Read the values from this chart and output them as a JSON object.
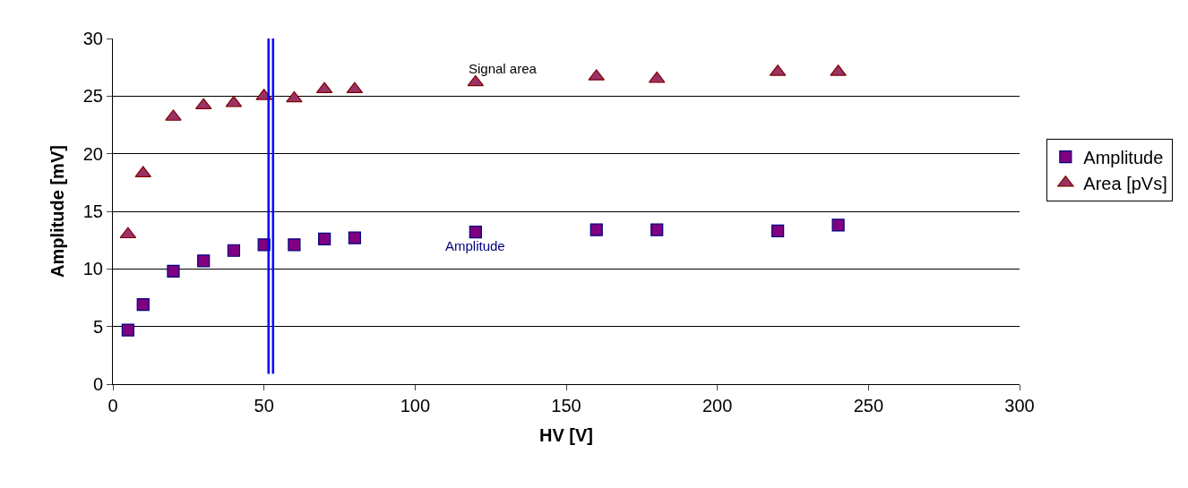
{
  "chart_data": {
    "type": "scatter",
    "xlabel": "HV [V]",
    "ylabel": "Amplitude [mV]",
    "x": [
      5,
      10,
      20,
      30,
      40,
      50,
      60,
      70,
      80,
      120,
      160,
      180,
      220,
      240
    ],
    "series": [
      {
        "name": "Amplitude",
        "color": "#800080",
        "marker": "square",
        "values": [
          4.7,
          6.9,
          9.8,
          10.7,
          11.6,
          12.1,
          12.1,
          12.6,
          12.7,
          13.2,
          13.4,
          13.4,
          13.3,
          13.8
        ]
      },
      {
        "name": "Area [pVs]",
        "color": "#993366",
        "marker": "triangle",
        "values": [
          13.0,
          18.3,
          23.2,
          24.2,
          24.4,
          25.0,
          24.8,
          25.6,
          25.6,
          26.2,
          26.7,
          26.5,
          27.1,
          27.1
        ]
      }
    ],
    "xlim": [
      0,
      300
    ],
    "xticks": [
      0,
      50,
      100,
      150,
      200,
      250,
      300
    ],
    "ylim": [
      0,
      30
    ],
    "yticks": [
      0,
      5,
      10,
      15,
      20,
      25,
      30
    ],
    "grid": "y",
    "legend": "right",
    "ref_lines": [
      {
        "axis": "x",
        "value": 51.5,
        "color": "#0000ff"
      },
      {
        "axis": "x",
        "value": 53,
        "color": "#0000ff"
      }
    ],
    "annotations": [
      "Signal area",
      "Amplitude"
    ]
  }
}
